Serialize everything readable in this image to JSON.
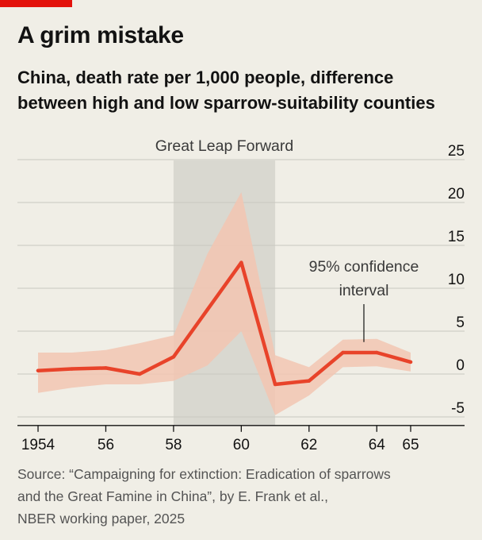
{
  "header": {
    "title": "A grim mistake",
    "subtitle_line1": "China, death rate per 1,000 people, difference",
    "subtitle_line2": "between high and low sparrow-suitability counties"
  },
  "source": {
    "line1": "Source: “Campaigning for extinction: Eradication of sparrows",
    "line2": "and the Great Famine in China”, by E. Frank et al.,",
    "line3": "NBER working paper, 2025"
  },
  "colors": {
    "line": "#e8432a",
    "band": "#f2c6b2",
    "shade": "#d9d8d0",
    "grid": "#c9c8c0",
    "brand": "#e3120b"
  },
  "chart_data": {
    "type": "line",
    "x": [
      1954,
      1955,
      1956,
      1957,
      1958,
      1959,
      1960,
      1961,
      1962,
      1963,
      1964,
      1965
    ],
    "series": [
      {
        "values": [
          0.4,
          0.6,
          0.7,
          0,
          2,
          7.5,
          13,
          -1.2,
          -0.8,
          2.5,
          2.5,
          1.4
        ]
      }
    ],
    "confidence_interval": {
      "upper": [
        2.5,
        2.5,
        2.8,
        3.6,
        4.5,
        14,
        21.2,
        2.2,
        0.8,
        4,
        4.1,
        2.5
      ],
      "lower": [
        -2.2,
        -1.6,
        -1.2,
        -1.2,
        -0.8,
        1,
        5,
        -4.8,
        -2.5,
        0.8,
        0.9,
        0.3
      ]
    },
    "shaded_period": {
      "label": "Great Leap Forward",
      "x_start": 1958,
      "x_end": 1961
    },
    "annotation": {
      "line1": "95% confidence",
      "line2": "interval"
    },
    "x_ticks": [
      1954,
      1956,
      1958,
      1960,
      1962,
      1964,
      1965
    ],
    "x_tick_labels": [
      "1954",
      "56",
      "58",
      "60",
      "62",
      "64",
      "65"
    ],
    "y_ticks": [
      -5,
      0,
      5,
      10,
      15,
      20,
      25
    ],
    "y_tick_labels": [
      "-5",
      "0",
      "5",
      "10",
      "15",
      "20",
      "25"
    ],
    "ylim": [
      -6,
      25
    ],
    "grid": true,
    "y_axis_side": "right"
  }
}
